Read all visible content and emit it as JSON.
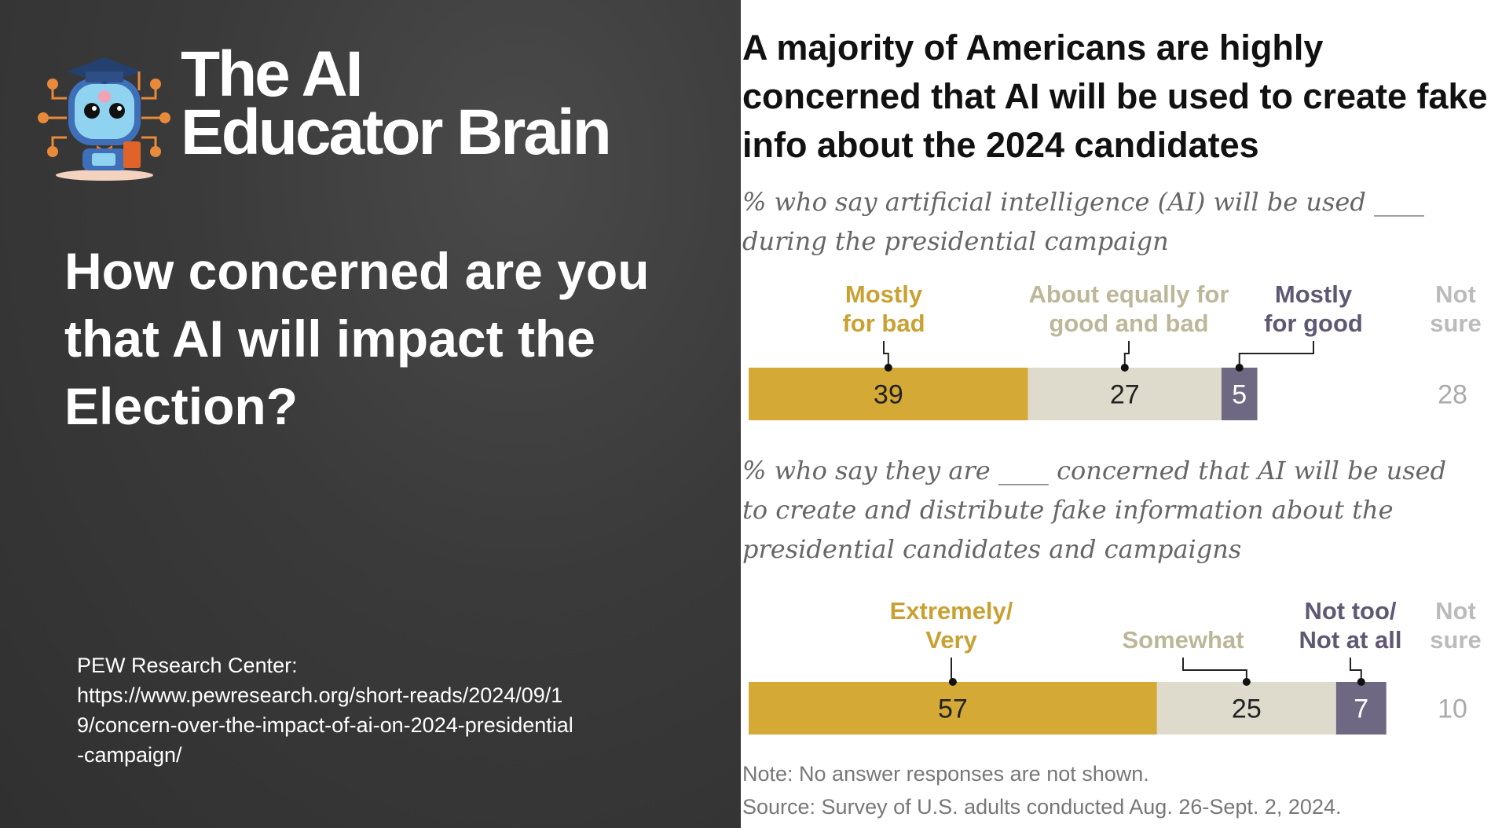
{
  "left": {
    "brand": {
      "line1": "The AI",
      "line2": "Educator Brain",
      "logo_icon": "robot-graduate-mascot-icon"
    },
    "question": "How concerned are you that AI will impact the Election?",
    "credit": {
      "line1": "PEW Research Center:",
      "url": "https://www.pewresearch.org/short-reads/2024/09/19/concern-over-the-impact-of-ai-on-2024-presidential-campaign/"
    }
  },
  "chart_data": [
    {
      "type": "bar",
      "orientation": "horizontal-stacked",
      "title": "A majority of Americans are highly concerned that AI will be used to create fake info about the 2024 candidates",
      "subtitle": "% who say artificial intelligence (AI) will be used ____ during the presidential campaign",
      "series": [
        {
          "name": "Mostly for bad",
          "value": 39,
          "color": "#d4a935",
          "label_color": "#c9a133",
          "text_color": "#222"
        },
        {
          "name": "About equally for good and bad",
          "value": 27,
          "color": "#dedbcc",
          "label_color": "#bdb79a",
          "text_color": "#222"
        },
        {
          "name": "Mostly for good",
          "value": 5,
          "color": "#6e6882",
          "label_color": "#5e5873",
          "text_color": "#fff"
        }
      ],
      "not_sure": {
        "name": "Not sure",
        "value": 28,
        "label_color": "#aaaaaa"
      }
    },
    {
      "type": "bar",
      "orientation": "horizontal-stacked",
      "subtitle": "% who say they are ____ concerned that AI will be used to create and distribute fake information about the presidential candidates and campaigns",
      "series": [
        {
          "name": "Extremely/ Very",
          "value": 57,
          "color": "#d4a935",
          "label_color": "#c9a133",
          "text_color": "#222"
        },
        {
          "name": "Somewhat",
          "value": 25,
          "color": "#dedbcc",
          "label_color": "#bdb79a",
          "text_color": "#222"
        },
        {
          "name": "Not too/ Not at all",
          "value": 7,
          "color": "#6e6882",
          "label_color": "#5e5873",
          "text_color": "#fff"
        }
      ],
      "not_sure": {
        "name": "Not sure",
        "value": 10,
        "label_color": "#aaaaaa"
      }
    }
  ],
  "notes": {
    "note": "Note: No answer responses are not shown.",
    "source": "Source: Survey of U.S. adults conducted Aug. 26-Sept. 2, 2024."
  }
}
